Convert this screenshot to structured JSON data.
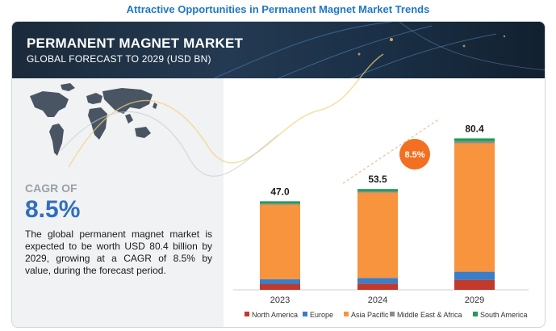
{
  "page_heading": "Attractive Opportunities in Permanent Magnet Market Trends",
  "banner": {
    "title": "PERMANENT MAGNET MARKET",
    "subtitle": "GLOBAL FORECAST TO 2029 (USD BN)"
  },
  "left_panel": {
    "cagr_label": "CAGR OF",
    "cagr_value": "8.5%",
    "description": "The global permanent magnet market is expected to be worth USD 80.4 billion by 2029, growing at a CAGR of 8.5% by value, during the forecast period."
  },
  "chart_data": {
    "type": "bar",
    "stacked": true,
    "categories": [
      "2023",
      "2024",
      "2029"
    ],
    "totals_labels": [
      "47.0",
      "53.5",
      "80.4"
    ],
    "totals": [
      47.0,
      53.5,
      80.4
    ],
    "series": [
      {
        "name": "North America",
        "color": "#c0392b",
        "values": [
          3.0,
          3.3,
          5.3
        ]
      },
      {
        "name": "Europe",
        "color": "#3a7dc9",
        "values": [
          2.6,
          3.0,
          4.3
        ]
      },
      {
        "name": "Asia Pacific",
        "color": "#f7943d",
        "values": [
          39.6,
          45.3,
          68.2
        ]
      },
      {
        "name": "Middle East & Africa",
        "color": "#8c8c8c",
        "values": [
          0.6,
          0.7,
          1.1
        ]
      },
      {
        "name": "South America",
        "color": "#1f9d55",
        "values": [
          1.2,
          1.2,
          1.5
        ]
      }
    ],
    "cagr_badge": "8.5%",
    "ylim": [
      0,
      90
    ],
    "legend_position": "bottom",
    "grid": false
  }
}
